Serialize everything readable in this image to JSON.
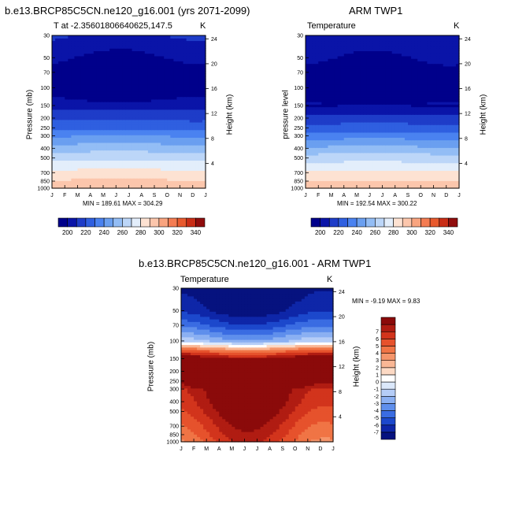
{
  "panels": [
    {
      "title": "b.e13.BRCP85C5CN.ne120_g16.001 (yrs 2071-2099)",
      "left_label": "T at -2.35601806640625,147.5",
      "unit": "K",
      "ylabel": "Pressure (mb)",
      "ylabel_right": "Height (km)",
      "minmax": "MIN = 189.61 MAX = 304.29"
    },
    {
      "title": "ARM TWP1",
      "left_label": "Temperature",
      "unit": "K",
      "ylabel": "pressure level",
      "ylabel_right": "Height (km)",
      "minmax": "MIN = 192.54 MAX = 300.22"
    },
    {
      "title": "b.e13.BRCP85C5CN.ne120_g16.001 - ARM TWP1",
      "left_label": "Temperature",
      "unit": "K",
      "ylabel": "Pressure (mb)",
      "ylabel_right": "Height (km)",
      "minmax": "MIN =  -9.19 MAX =  9.83"
    }
  ],
  "chart_data": [
    {
      "type": "heatmap",
      "title": "b.e13.BRCP85C5CN.ne120_g16.001 (yrs 2071-2099)",
      "x_categories": [
        "J",
        "F",
        "M",
        "A",
        "M",
        "J",
        "J",
        "A",
        "S",
        "O",
        "N",
        "D",
        "J"
      ],
      "y_levels_mb": [
        1000,
        850,
        700,
        500,
        400,
        300,
        250,
        200,
        150,
        100,
        70,
        50,
        30
      ],
      "height_ticks_km": [
        4,
        8,
        12,
        16,
        20,
        24
      ],
      "ylabel": "Pressure (mb)",
      "ylabel_right": "Height (km)",
      "colorbar_ticks": [
        "200",
        "220",
        "240",
        "260",
        "280",
        "300",
        "320",
        "340"
      ],
      "colorbar_colors": [
        "#00008b",
        "#0a14a8",
        "#1e3cc8",
        "#2f5fe0",
        "#4a82f0",
        "#6a9ff0",
        "#93bdf5",
        "#bcd6f8",
        "#e3eefb",
        "#fde2d2",
        "#fcc6ac",
        "#f9a47f",
        "#f47c52",
        "#e85a2e",
        "#c92d16",
        "#900d0d"
      ],
      "colorbar_min": 190,
      "colorbar_step": 10,
      "profile": [
        [
          1000,
          300
        ],
        [
          850,
          292
        ],
        [
          700,
          284
        ],
        [
          500,
          268
        ],
        [
          400,
          256
        ],
        [
          300,
          240
        ],
        [
          250,
          228
        ],
        [
          200,
          218
        ],
        [
          150,
          206
        ],
        [
          120,
          196
        ],
        [
          100,
          192
        ],
        [
          70,
          194
        ],
        [
          50,
          199
        ],
        [
          30,
          209
        ]
      ],
      "seasonal_amplitude": 3.0,
      "min": 189.61,
      "max": 304.29
    },
    {
      "type": "heatmap",
      "title": "ARM TWP1",
      "x_categories": [
        "J",
        "F",
        "M",
        "A",
        "M",
        "J",
        "J",
        "A",
        "S",
        "O",
        "N",
        "D",
        "J"
      ],
      "y_levels_mb": [
        1000,
        850,
        700,
        500,
        400,
        300,
        250,
        200,
        150,
        100,
        70,
        50,
        30
      ],
      "height_ticks_km": [
        4,
        8,
        12,
        16,
        20,
        24
      ],
      "ylabel": "pressure level",
      "ylabel_right": "Height (km)",
      "colorbar_ticks": [
        "200",
        "220",
        "240",
        "260",
        "280",
        "300",
        "320",
        "340"
      ],
      "colorbar_colors": [
        "#00008b",
        "#0a14a8",
        "#1e3cc8",
        "#2f5fe0",
        "#4a82f0",
        "#6a9ff0",
        "#93bdf5",
        "#bcd6f8",
        "#e3eefb",
        "#fde2d2",
        "#fcc6ac",
        "#f9a47f",
        "#f47c52",
        "#e85a2e",
        "#c92d16",
        "#900d0d"
      ],
      "colorbar_min": 190,
      "colorbar_step": 10,
      "profile": [
        [
          1000,
          298
        ],
        [
          850,
          290
        ],
        [
          700,
          282
        ],
        [
          500,
          266
        ],
        [
          400,
          253
        ],
        [
          300,
          236
        ],
        [
          250,
          225
        ],
        [
          200,
          214
        ],
        [
          150,
          200
        ],
        [
          120,
          195
        ],
        [
          100,
          193
        ],
        [
          70,
          195
        ],
        [
          50,
          200
        ],
        [
          30,
          207
        ]
      ],
      "seasonal_amplitude": 2.5,
      "min": 192.54,
      "max": 300.22
    },
    {
      "type": "heatmap",
      "title": "b.e13.BRCP85C5CN.ne120_g16.001 - ARM TWP1",
      "x_categories": [
        "J",
        "F",
        "M",
        "A",
        "M",
        "J",
        "J",
        "A",
        "S",
        "O",
        "N",
        "D",
        "J"
      ],
      "y_levels_mb": [
        1000,
        850,
        700,
        500,
        400,
        300,
        250,
        200,
        150,
        100,
        70,
        50,
        30
      ],
      "height_ticks_km": [
        4,
        8,
        12,
        16,
        20,
        24
      ],
      "ylabel": "Pressure (mb)",
      "ylabel_right": "Height (km)",
      "colorbar_ticks": [
        "7",
        "6",
        "5",
        "4",
        "3",
        "2",
        "1",
        "0",
        "-1",
        "-2",
        "-3",
        "-4",
        "-5",
        "-6",
        "-7"
      ],
      "colorbar_colors": [
        "#8b0a0a",
        "#b01c12",
        "#d2341c",
        "#e6522c",
        "#f07445",
        "#f5956a",
        "#f9b795",
        "#fcd9c4",
        "#ffffff",
        "#dbe8fb",
        "#b5cdf7",
        "#8bb0f2",
        "#5f8fec",
        "#3a6ce2",
        "#1c48cc",
        "#0e26a8",
        "#06127f"
      ],
      "colorbar_min": -8,
      "colorbar_step": 1,
      "profile": [
        [
          1000,
          5.5
        ],
        [
          850,
          6
        ],
        [
          700,
          6.5
        ],
        [
          500,
          7.5
        ],
        [
          400,
          8
        ],
        [
          300,
          8.5
        ],
        [
          250,
          9
        ],
        [
          200,
          9.3
        ],
        [
          150,
          9
        ],
        [
          120,
          4
        ],
        [
          100,
          -2
        ],
        [
          70,
          -5
        ],
        [
          50,
          -7
        ],
        [
          30,
          -8
        ]
      ],
      "seasonal_amplitude": 1.5,
      "min": -9.19,
      "max": 9.83
    }
  ]
}
